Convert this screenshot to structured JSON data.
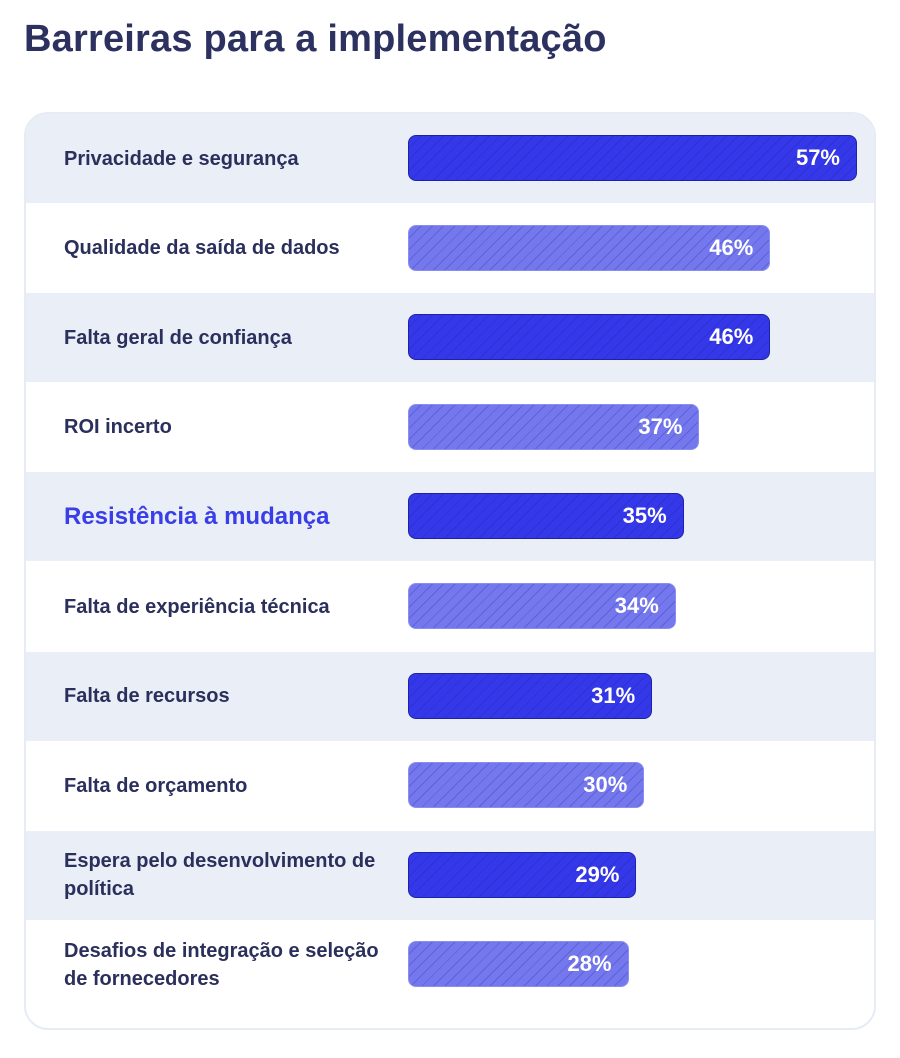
{
  "chart_data": {
    "type": "bar",
    "orientation": "horizontal",
    "title": "Barreiras para a implementação",
    "categories": [
      "Privacidade e segurança",
      "Qualidade da saída de dados",
      "Falta geral de confiança",
      "ROI incerto",
      "Resistência à mudança",
      "Falta de experiência técnica",
      "Falta de recursos",
      "Falta de orçamento",
      "Espera pelo desenvolvimento de política",
      "Desafios de integração e seleção de fornecedores"
    ],
    "values": [
      57,
      46,
      46,
      37,
      35,
      34,
      31,
      30,
      29,
      28
    ],
    "value_labels": [
      "57%",
      "46%",
      "46%",
      "37%",
      "35%",
      "34%",
      "31%",
      "30%",
      "29%",
      "28%"
    ],
    "xlim": [
      0,
      57
    ],
    "highlighted_category": "Resistência à mudança",
    "colors": {
      "primary_bar": "#3438e8",
      "secondary_bar": "#7478ec",
      "highlight_text": "#3a3ee6",
      "row_band": "#e9eef7",
      "text": "#2b2f5c"
    },
    "grid": false,
    "legend": "none"
  }
}
